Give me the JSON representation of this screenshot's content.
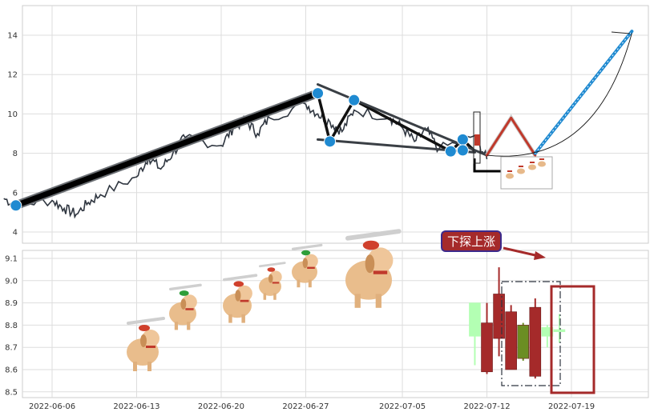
{
  "chart_data": [
    {
      "type": "line",
      "panel": "upper",
      "ylim": [
        3.4,
        15.3
      ],
      "yticks": [
        "4",
        "6",
        "8",
        "10",
        "12",
        "14"
      ],
      "grid": true,
      "price_series": {
        "x": [
          "2022-06-02",
          "2022-06-03",
          "2022-06-06",
          "2022-06-07",
          "2022-06-08",
          "2022-06-09",
          "2022-06-10",
          "2022-06-13",
          "2022-06-14",
          "2022-06-15",
          "2022-06-16",
          "2022-06-17",
          "2022-06-20",
          "2022-06-21",
          "2022-06-22",
          "2022-06-23",
          "2022-06-24",
          "2022-06-27",
          "2022-06-28",
          "2022-06-29",
          "2022-06-30",
          "2022-07-01",
          "2022-07-04",
          "2022-07-05",
          "2022-07-06",
          "2022-07-07",
          "2022-07-08",
          "2022-07-11",
          "2022-07-12"
        ],
        "values": [
          5.7,
          5.4,
          5.6,
          5.2,
          4.9,
          5.5,
          5.9,
          6.8,
          7.8,
          7.2,
          8.0,
          8.8,
          8.4,
          9.3,
          9.7,
          9.0,
          9.8,
          10.5,
          10.0,
          9.6,
          9.1,
          10.2,
          9.8,
          9.3,
          8.6,
          9.2,
          8.2,
          8.9,
          7.7
        ]
      },
      "trend_lines": [
        {
          "x": [
            "2022-06-03",
            "2022-06-28"
          ],
          "values": [
            5.35,
            11.05
          ],
          "style": "thick-black"
        },
        {
          "x": [
            "2022-06-28",
            "2022-06-29",
            "2022-07-01",
            "2022-07-09",
            "2022-07-10",
            "2022-07-11"
          ],
          "values": [
            11.05,
            8.6,
            10.7,
            8.1,
            8.7,
            8.1
          ],
          "style": "zigzag"
        },
        {
          "x": [
            "2022-06-28",
            "2022-07-12"
          ],
          "values": [
            11.5,
            7.9
          ],
          "style": "channel"
        },
        {
          "x": [
            "2022-06-28",
            "2022-07-11"
          ],
          "values": [
            8.7,
            8.05
          ],
          "style": "channel"
        },
        {
          "x": [
            "2022-07-12",
            "2022-07-14",
            "2022-07-16"
          ],
          "values": [
            7.9,
            9.8,
            7.9
          ],
          "style": "red-peak"
        },
        {
          "x": [
            "2022-07-16",
            "2022-07-24"
          ],
          "values": [
            8.0,
            14.2
          ],
          "style": "blue-dashed"
        }
      ],
      "markers": [
        {
          "x": "2022-06-03",
          "value": 5.35
        },
        {
          "x": "2022-06-28",
          "value": 11.05
        },
        {
          "x": "2022-06-29",
          "value": 8.6
        },
        {
          "x": "2022-07-01",
          "value": 10.7
        },
        {
          "x": "2022-07-09",
          "value": 8.1
        },
        {
          "x": "2022-07-10",
          "value": 8.7
        },
        {
          "x": "2022-07-10",
          "value": 8.15
        }
      ]
    },
    {
      "type": "candlestick",
      "panel": "lower",
      "ylim": [
        8.48,
        9.14
      ],
      "yticks": [
        "8.5",
        "8.6",
        "8.7",
        "8.8",
        "8.9",
        "9.0",
        "9.1"
      ],
      "xticks": [
        "2022-06-06",
        "2022-06-13",
        "2022-06-20",
        "2022-06-27",
        "2022-07-05",
        "2022-07-12",
        "2022-07-19"
      ],
      "grid": true,
      "candles": [
        {
          "x": "2022-07-11",
          "open": 8.75,
          "high": 8.9,
          "low": 8.62,
          "close": 8.9,
          "color": "#b3ffb3"
        },
        {
          "x": "2022-07-12",
          "open": 8.81,
          "high": 8.9,
          "low": 8.58,
          "close": 8.59,
          "color": "#a52a2a"
        },
        {
          "x": "2022-07-13",
          "open": 8.94,
          "high": 9.06,
          "low": 8.66,
          "close": 8.74,
          "color": "#a52a2a"
        },
        {
          "x": "2022-07-14",
          "open": 8.86,
          "high": 8.89,
          "low": 8.6,
          "close": 8.6,
          "color": "#a52a2a"
        },
        {
          "x": "2022-07-15",
          "open": 8.8,
          "high": 8.81,
          "low": 8.64,
          "close": 8.65,
          "color": "#6b8e23"
        },
        {
          "x": "2022-07-16",
          "open": 8.88,
          "high": 8.92,
          "low": 8.56,
          "close": 8.57,
          "color": "#a52a2a"
        },
        {
          "x": "2022-07-17",
          "open": 8.79,
          "high": 8.8,
          "low": 8.7,
          "close": 8.75,
          "color": "#b3ffb3"
        },
        {
          "x": "2022-07-18",
          "open": 8.78,
          "high": 8.85,
          "low": 8.72,
          "close": 8.77,
          "color": "#b3ffb3"
        }
      ],
      "annotation": {
        "text": "下探上涨",
        "arrow_to": "2022-07-15"
      }
    }
  ]
}
